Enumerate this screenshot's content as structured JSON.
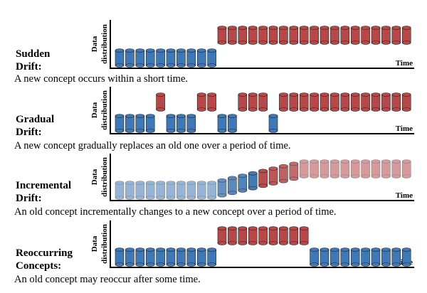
{
  "panels": [
    {
      "title": [
        "Sudden",
        "Drift:"
      ],
      "description": "A new concept occurs within a short time.",
      "y_label": [
        "Data",
        "distribution"
      ],
      "x_label": "Time"
    },
    {
      "title": [
        "Gradual",
        "Drift:"
      ],
      "description": "A new concept gradually replaces an old one over a period of time.",
      "y_label": [
        "Data",
        "distribution"
      ],
      "x_label": "Time"
    },
    {
      "title": [
        "Incremental",
        "Drift:"
      ],
      "description": "An old concept incrementally changes to a new concept over a period of time.",
      "y_label": [
        "Data",
        "distribution"
      ],
      "x_label": "Time"
    },
    {
      "title": [
        "Reoccurring",
        "Concepts:"
      ],
      "description": "An old concept may reoccur after some time.",
      "y_label": [
        "Data",
        "distribution"
      ],
      "x_label": "Time"
    }
  ]
}
